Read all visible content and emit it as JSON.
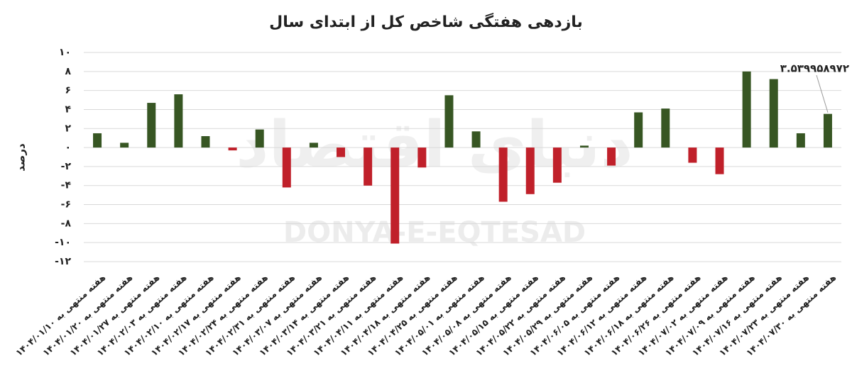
{
  "chart_data": {
    "type": "bar",
    "title": "بازدهی هفتگی شاخص کل از ابتدای سال",
    "y_label": "درصد",
    "watermark": "DONYA-E-EQTESAD",
    "watermark_fa": "دنیای اقتصاد",
    "categories": [
      "هفته منتهی به ۱۴۰۴/۰۱/۱۰",
      "هفته منتهی به ۱۴۰۴/۰۱/۲۰",
      "هفته منتهی به ۱۴۰۴/۰۱/۲۷",
      "هفته منتهی به ۱۴۰۴/۰۲/۰۳",
      "هفته منتهی به ۱۴۰۴/۰۲/۱۰",
      "هفته منتهی به ۱۴۰۴/۰۲/۱۷",
      "هفته منتهی به ۱۴۰۴/۰۲/۲۴",
      "هفته منتهی به ۱۴۰۴/۰۲/۳۱",
      "هفته منتهی به ۱۴۰۴/۰۳/۰۷",
      "هفته منتهی به ۱۴۰۴/۰۳/۱۴",
      "هفته منتهی به ۱۴۰۴/۰۳/۲۱",
      "هفته منتهی به ۱۴۰۴/۰۴/۱۱",
      "هفته منتهی به ۱۴۰۴/۰۴/۱۸",
      "هفته منتهی به ۱۴۰۴/۰۴/۲۵",
      "هفته منتهی به ۱۴۰۴/۰۵/۰۱",
      "هفته منتهی به ۱۴۰۴/۰۵/۰۸",
      "هفته منتهی به ۱۴۰۴/۰۵/۱۵",
      "هفته منتهی به ۱۴۰۴/۰۵/۲۲",
      "هفته منتهی به ۱۴۰۴/۰۵/۲۹",
      "هفته منتهی به ۱۴۰۴/۰۶/۰۵",
      "هفته منتهی به ۱۴۰۴/۰۶/۱۲",
      "هفته منتهی به ۱۴۰۴/۰۶/۱۸",
      "هفته منتهی به ۱۴۰۴/۰۶/۲۶",
      "هفته منتهی به ۱۴۰۴/۰۷/۰۲",
      "هفته منتهی به ۱۴۰۴/۰۷/۰۹",
      "هفته منتهی به ۱۴۰۴/۰۷/۱۶",
      "هفته منتهی به ۱۴۰۴/۰۷/۲۳",
      "هفته منتهی به ۱۴۰۴/۰۷/۳۰"
    ],
    "values": [
      1.5,
      0.5,
      4.7,
      5.6,
      1.2,
      -0.3,
      1.9,
      -4.2,
      0.5,
      -1.0,
      -4.0,
      -10.1,
      -2.1,
      5.5,
      1.7,
      -5.7,
      -4.9,
      -3.7,
      0.2,
      -1.9,
      3.7,
      4.1,
      -1.6,
      -2.8,
      8.0,
      7.2,
      1.5,
      3.539958972
    ],
    "value_labels": [
      null,
      null,
      null,
      null,
      null,
      null,
      null,
      null,
      null,
      null,
      null,
      null,
      null,
      null,
      null,
      null,
      null,
      null,
      null,
      null,
      null,
      null,
      null,
      null,
      null,
      null,
      null,
      "۳.۵۳۹۹۵۸۹۷۲"
    ],
    "colors": {
      "positive": "#375623",
      "negative": "#c0202a"
    },
    "ylim": [
      -12,
      10
    ],
    "yticks": [
      {
        "value": 10,
        "label": "۱۰"
      },
      {
        "value": 8,
        "label": "۸"
      },
      {
        "value": 6,
        "label": "۶"
      },
      {
        "value": 4,
        "label": "۴"
      },
      {
        "value": 2,
        "label": "۲"
      },
      {
        "value": 0,
        "label": "۰"
      },
      {
        "value": -2,
        "label": "-۲"
      },
      {
        "value": -4,
        "label": "-۴"
      },
      {
        "value": -6,
        "label": "-۶"
      },
      {
        "value": -8,
        "label": "-۸"
      },
      {
        "value": -10,
        "label": "-۱۰"
      },
      {
        "value": -12,
        "label": "-۱۲"
      }
    ],
    "grid": true
  }
}
